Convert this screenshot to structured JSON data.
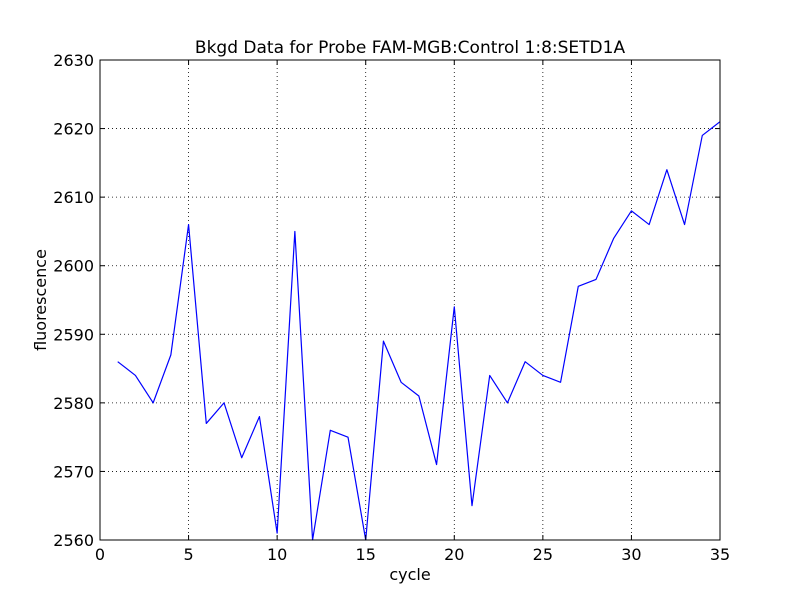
{
  "chart_data": {
    "type": "line",
    "title": "Bkgd Data for Probe FAM-MGB:Control 1:8:SETD1A",
    "xlabel": "cycle",
    "ylabel": "fluorescence",
    "xlim": [
      0,
      35
    ],
    "ylim": [
      2560,
      2630
    ],
    "xticks": [
      0,
      5,
      10,
      15,
      20,
      25,
      30,
      35
    ],
    "yticks": [
      2560,
      2570,
      2580,
      2590,
      2600,
      2610,
      2620,
      2630
    ],
    "grid": true,
    "line_color": "#0000ff",
    "series": [
      {
        "x": [
          1,
          2,
          3,
          4,
          5,
          6,
          7,
          8,
          9,
          10,
          11,
          12,
          13,
          14,
          15,
          16,
          17,
          18,
          19,
          20,
          21,
          22,
          23,
          24,
          25,
          26,
          27,
          28,
          29,
          30,
          31,
          32,
          33,
          34,
          35
        ],
        "values": [
          2586,
          2584,
          2580,
          2587,
          2606,
          2577,
          2580,
          2572,
          2578,
          2561,
          2605,
          2560,
          2576,
          2575,
          2560,
          2589,
          2583,
          2581,
          2571,
          2594,
          2565,
          2584,
          2580,
          2586,
          2584,
          2583,
          2597,
          2598,
          2604,
          2608,
          2606,
          2614,
          2606,
          2619,
          2621
        ]
      }
    ]
  }
}
